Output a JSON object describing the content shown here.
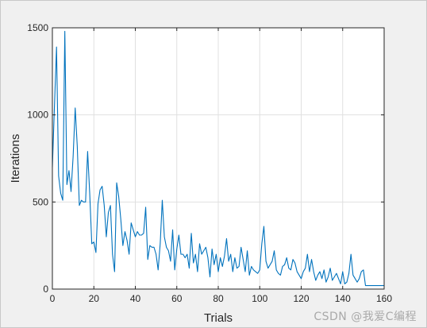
{
  "chart_data": {
    "type": "line",
    "title": "",
    "xlabel": "Trials",
    "ylabel": "Iterations",
    "xlim": [
      0,
      160
    ],
    "ylim": [
      0,
      1500
    ],
    "xticks": [
      0,
      20,
      40,
      60,
      80,
      100,
      120,
      140,
      160
    ],
    "yticks": [
      0,
      500,
      1000,
      1500
    ],
    "grid": true,
    "line_color": "#0072bd",
    "series": [
      {
        "values": [
          [
            0,
            700
          ],
          [
            1,
            1050
          ],
          [
            2,
            1390
          ],
          [
            3,
            650
          ],
          [
            4,
            550
          ],
          [
            5,
            510
          ],
          [
            6,
            1480
          ],
          [
            7,
            600
          ],
          [
            8,
            680
          ],
          [
            9,
            560
          ],
          [
            10,
            760
          ],
          [
            11,
            1040
          ],
          [
            12,
            820
          ],
          [
            13,
            480
          ],
          [
            14,
            510
          ],
          [
            15,
            500
          ],
          [
            16,
            500
          ],
          [
            17,
            790
          ],
          [
            18,
            550
          ],
          [
            19,
            260
          ],
          [
            20,
            270
          ],
          [
            21,
            210
          ],
          [
            22,
            490
          ],
          [
            23,
            570
          ],
          [
            24,
            590
          ],
          [
            25,
            480
          ],
          [
            26,
            300
          ],
          [
            27,
            440
          ],
          [
            28,
            480
          ],
          [
            29,
            200
          ],
          [
            30,
            100
          ],
          [
            31,
            610
          ],
          [
            32,
            530
          ],
          [
            33,
            400
          ],
          [
            34,
            250
          ],
          [
            35,
            330
          ],
          [
            36,
            280
          ],
          [
            37,
            200
          ],
          [
            38,
            380
          ],
          [
            39,
            340
          ],
          [
            40,
            300
          ],
          [
            41,
            330
          ],
          [
            42,
            310
          ],
          [
            43,
            310
          ],
          [
            44,
            320
          ],
          [
            45,
            470
          ],
          [
            46,
            170
          ],
          [
            47,
            250
          ],
          [
            48,
            240
          ],
          [
            49,
            240
          ],
          [
            50,
            200
          ],
          [
            51,
            110
          ],
          [
            52,
            260
          ],
          [
            53,
            510
          ],
          [
            54,
            300
          ],
          [
            55,
            240
          ],
          [
            56,
            220
          ],
          [
            57,
            160
          ],
          [
            58,
            340
          ],
          [
            59,
            110
          ],
          [
            60,
            230
          ],
          [
            61,
            310
          ],
          [
            62,
            200
          ],
          [
            63,
            200
          ],
          [
            64,
            180
          ],
          [
            65,
            200
          ],
          [
            66,
            120
          ],
          [
            67,
            320
          ],
          [
            68,
            150
          ],
          [
            69,
            200
          ],
          [
            70,
            100
          ],
          [
            71,
            260
          ],
          [
            72,
            200
          ],
          [
            73,
            220
          ],
          [
            74,
            240
          ],
          [
            75,
            180
          ],
          [
            76,
            70
          ],
          [
            77,
            230
          ],
          [
            78,
            140
          ],
          [
            79,
            200
          ],
          [
            80,
            100
          ],
          [
            81,
            180
          ],
          [
            82,
            130
          ],
          [
            83,
            190
          ],
          [
            84,
            290
          ],
          [
            85,
            160
          ],
          [
            86,
            200
          ],
          [
            87,
            100
          ],
          [
            88,
            180
          ],
          [
            89,
            120
          ],
          [
            90,
            130
          ],
          [
            91,
            240
          ],
          [
            92,
            170
          ],
          [
            93,
            100
          ],
          [
            94,
            220
          ],
          [
            95,
            80
          ],
          [
            96,
            130
          ],
          [
            97,
            110
          ],
          [
            98,
            100
          ],
          [
            99,
            90
          ],
          [
            100,
            110
          ],
          [
            101,
            260
          ],
          [
            102,
            360
          ],
          [
            103,
            160
          ],
          [
            104,
            120
          ],
          [
            105,
            140
          ],
          [
            106,
            160
          ],
          [
            107,
            220
          ],
          [
            108,
            110
          ],
          [
            109,
            90
          ],
          [
            110,
            80
          ],
          [
            111,
            130
          ],
          [
            112,
            140
          ],
          [
            113,
            180
          ],
          [
            114,
            120
          ],
          [
            115,
            110
          ],
          [
            116,
            170
          ],
          [
            117,
            150
          ],
          [
            118,
            100
          ],
          [
            119,
            80
          ],
          [
            120,
            60
          ],
          [
            121,
            100
          ],
          [
            122,
            120
          ],
          [
            123,
            200
          ],
          [
            124,
            100
          ],
          [
            125,
            170
          ],
          [
            126,
            100
          ],
          [
            127,
            50
          ],
          [
            128,
            80
          ],
          [
            129,
            100
          ],
          [
            130,
            60
          ],
          [
            131,
            110
          ],
          [
            132,
            40
          ],
          [
            133,
            70
          ],
          [
            134,
            120
          ],
          [
            135,
            50
          ],
          [
            136,
            70
          ],
          [
            137,
            90
          ],
          [
            138,
            60
          ],
          [
            139,
            30
          ],
          [
            140,
            100
          ],
          [
            141,
            30
          ],
          [
            142,
            40
          ],
          [
            143,
            90
          ],
          [
            144,
            200
          ],
          [
            145,
            80
          ],
          [
            146,
            60
          ],
          [
            147,
            40
          ],
          [
            148,
            60
          ],
          [
            149,
            100
          ],
          [
            150,
            110
          ],
          [
            151,
            20
          ],
          [
            152,
            20
          ],
          [
            153,
            20
          ],
          [
            154,
            20
          ],
          [
            155,
            20
          ],
          [
            156,
            20
          ],
          [
            157,
            20
          ],
          [
            158,
            20
          ],
          [
            159,
            20
          ],
          [
            160,
            20
          ]
        ]
      }
    ]
  },
  "watermark": "CSDN @我爱C编程"
}
